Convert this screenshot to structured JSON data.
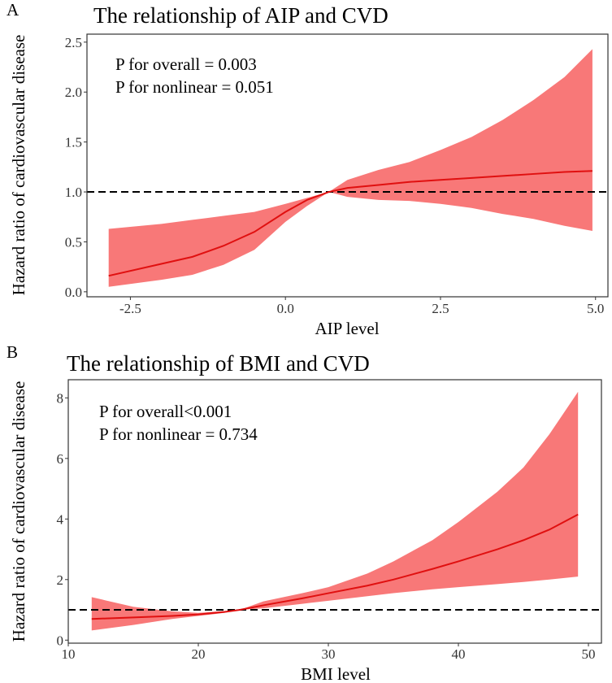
{
  "colors": {
    "band": "#f87878",
    "line": "#e01010",
    "reference": "#000000"
  },
  "chart_data": [
    {
      "panel_label": "A",
      "type": "line",
      "title": "The relationship of AIP and CVD",
      "xlabel": "AIP level",
      "ylabel": "Hazard ratio of cardiovascular disease",
      "xlim": [
        -3.2,
        5.2
      ],
      "ylim": [
        -0.05,
        2.58
      ],
      "xticks": [
        "-2.5",
        "0.0",
        "2.5",
        "5.0"
      ],
      "xtick_values": [
        -2.5,
        0,
        2.5,
        5
      ],
      "yticks": [
        "0.0",
        "0.5",
        "1.0",
        "1.5",
        "2.0",
        "2.5"
      ],
      "ytick_values": [
        0,
        0.5,
        1,
        1.5,
        2,
        2.5
      ],
      "reference_line": 1.0,
      "annotations": [
        "P for overall = 0.003",
        "P for nonlinear = 0.051"
      ],
      "x": [
        -2.85,
        -2.0,
        -1.5,
        -1.0,
        -0.5,
        0.0,
        0.35,
        0.7,
        1.0,
        1.5,
        2.0,
        2.5,
        3.0,
        3.5,
        4.0,
        4.5,
        4.95
      ],
      "y": [
        0.16,
        0.28,
        0.35,
        0.46,
        0.6,
        0.8,
        0.92,
        1.0,
        1.04,
        1.07,
        1.1,
        1.12,
        1.14,
        1.16,
        1.18,
        1.2,
        1.21
      ],
      "lower": [
        0.05,
        0.12,
        0.17,
        0.27,
        0.42,
        0.7,
        0.86,
        1.0,
        0.95,
        0.92,
        0.91,
        0.88,
        0.84,
        0.78,
        0.73,
        0.66,
        0.61
      ],
      "upper": [
        0.63,
        0.68,
        0.72,
        0.76,
        0.8,
        0.88,
        0.94,
        1.0,
        1.12,
        1.22,
        1.3,
        1.42,
        1.55,
        1.72,
        1.92,
        2.15,
        2.43
      ]
    },
    {
      "panel_label": "B",
      "type": "line",
      "title": "The relationship of BMI and CVD",
      "xlabel": "BMI level",
      "ylabel": "Hazard ratio of cardiovascular disease",
      "xlim": [
        10,
        51
      ],
      "ylim": [
        -0.1,
        8.6
      ],
      "xticks": [
        "10",
        "20",
        "30",
        "40",
        "50"
      ],
      "xtick_values": [
        10,
        20,
        30,
        40,
        50
      ],
      "yticks": [
        "0",
        "2",
        "4",
        "6",
        "8"
      ],
      "ytick_values": [
        0,
        2,
        4,
        6,
        8
      ],
      "reference_line": 1.0,
      "annotations": [
        "P for overall<0.001",
        "P for nonlinear = 0.734"
      ],
      "x": [
        11.8,
        15,
        18,
        20,
        22,
        23.2,
        25,
        28,
        30,
        33,
        35,
        38,
        40,
        43,
        45,
        47,
        49.2
      ],
      "y": [
        0.7,
        0.75,
        0.8,
        0.85,
        0.93,
        1.0,
        1.15,
        1.38,
        1.55,
        1.8,
        2.0,
        2.35,
        2.6,
        3.0,
        3.3,
        3.65,
        4.15
      ],
      "lower": [
        0.32,
        0.5,
        0.7,
        0.8,
        0.9,
        1.0,
        1.05,
        1.2,
        1.3,
        1.45,
        1.55,
        1.68,
        1.75,
        1.85,
        1.92,
        2.0,
        2.1
      ],
      "upper": [
        1.42,
        1.1,
        0.95,
        0.9,
        0.96,
        1.0,
        1.28,
        1.55,
        1.75,
        2.2,
        2.6,
        3.3,
        3.9,
        4.9,
        5.7,
        6.8,
        8.2
      ]
    }
  ]
}
